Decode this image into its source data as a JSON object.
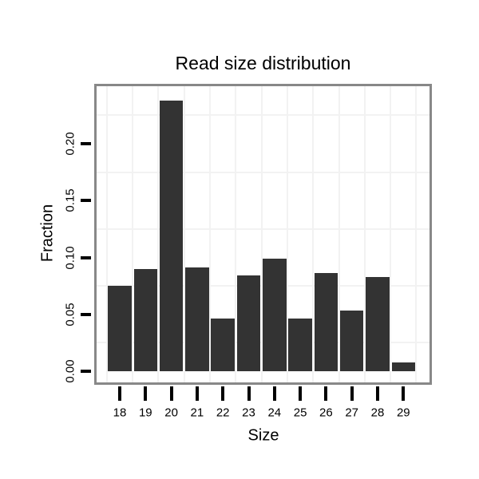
{
  "chart_data": {
    "type": "bar",
    "title": "Read size distribution",
    "xlabel": "Size",
    "ylabel": "Fraction",
    "categories": [
      "18",
      "19",
      "20",
      "21",
      "22",
      "23",
      "24",
      "25",
      "26",
      "27",
      "28",
      "29"
    ],
    "values": [
      0.075,
      0.09,
      0.238,
      0.091,
      0.046,
      0.084,
      0.099,
      0.046,
      0.086,
      0.053,
      0.083,
      0.008
    ],
    "ytick_labels": [
      "0.00",
      "0.05",
      "0.10",
      "0.15",
      "0.20"
    ],
    "ytick_values": [
      0.0,
      0.05,
      0.1,
      0.15,
      0.2
    ],
    "ylim": [
      -0.01,
      0.25
    ],
    "grid": "on",
    "legend": "none",
    "colors": {
      "bar": "#333333",
      "panel_border": "#888888",
      "gridline": "#f2f2f2",
      "tick": "#000000",
      "text": "#000000",
      "background": "#ffffff"
    }
  }
}
